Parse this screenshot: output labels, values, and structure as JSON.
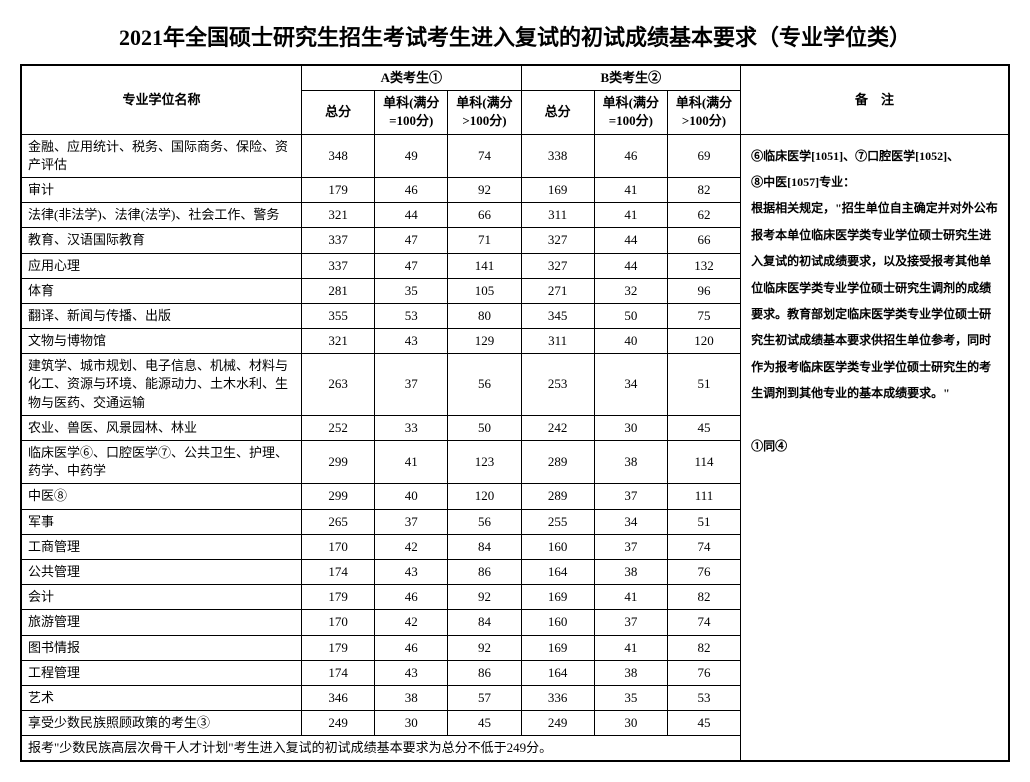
{
  "title": "2021年全国硕士研究生招生考试考生进入复试的初试成绩基本要求（专业学位类）",
  "headers": {
    "name": "专业学位名称",
    "groupA": "A类考生①",
    "groupB": "B类考生②",
    "remark": "备　注",
    "total": "总分",
    "single100": "单科(满分=100分)",
    "singleGt100": "单科(满分>100分)"
  },
  "rows": [
    {
      "name": "金融、应用统计、税务、国际商务、保险、资产评估",
      "a": [
        348,
        49,
        74
      ],
      "b": [
        338,
        46,
        69
      ]
    },
    {
      "name": "审计",
      "a": [
        179,
        46,
        92
      ],
      "b": [
        169,
        41,
        82
      ]
    },
    {
      "name": "法律(非法学)、法律(法学)、社会工作、警务",
      "a": [
        321,
        44,
        66
      ],
      "b": [
        311,
        41,
        62
      ]
    },
    {
      "name": "教育、汉语国际教育",
      "a": [
        337,
        47,
        71
      ],
      "b": [
        327,
        44,
        66
      ]
    },
    {
      "name": "应用心理",
      "a": [
        337,
        47,
        141
      ],
      "b": [
        327,
        44,
        132
      ]
    },
    {
      "name": "体育",
      "a": [
        281,
        35,
        105
      ],
      "b": [
        271,
        32,
        96
      ]
    },
    {
      "name": "翻译、新闻与传播、出版",
      "a": [
        355,
        53,
        80
      ],
      "b": [
        345,
        50,
        75
      ]
    },
    {
      "name": "文物与博物馆",
      "a": [
        321,
        43,
        129
      ],
      "b": [
        311,
        40,
        120
      ]
    },
    {
      "name": "建筑学、城市规划、电子信息、机械、材料与化工、资源与环境、能源动力、土木水利、生物与医药、交通运输",
      "a": [
        263,
        37,
        56
      ],
      "b": [
        253,
        34,
        51
      ]
    },
    {
      "name": "农业、兽医、风景园林、林业",
      "a": [
        252,
        33,
        50
      ],
      "b": [
        242,
        30,
        45
      ]
    },
    {
      "name": "临床医学⑥、口腔医学⑦、公共卫生、护理、药学、中药学",
      "a": [
        299,
        41,
        123
      ],
      "b": [
        289,
        38,
        114
      ]
    },
    {
      "name": "中医⑧",
      "a": [
        299,
        40,
        120
      ],
      "b": [
        289,
        37,
        111
      ]
    },
    {
      "name": "军事",
      "a": [
        265,
        37,
        56
      ],
      "b": [
        255,
        34,
        51
      ]
    },
    {
      "name": "工商管理",
      "a": [
        170,
        42,
        84
      ],
      "b": [
        160,
        37,
        74
      ]
    },
    {
      "name": "公共管理",
      "a": [
        174,
        43,
        86
      ],
      "b": [
        164,
        38,
        76
      ]
    },
    {
      "name": "会计",
      "a": [
        179,
        46,
        92
      ],
      "b": [
        169,
        41,
        82
      ]
    },
    {
      "name": "旅游管理",
      "a": [
        170,
        42,
        84
      ],
      "b": [
        160,
        37,
        74
      ]
    },
    {
      "name": "图书情报",
      "a": [
        179,
        46,
        92
      ],
      "b": [
        169,
        41,
        82
      ]
    },
    {
      "name": "工程管理",
      "a": [
        174,
        43,
        86
      ],
      "b": [
        164,
        38,
        76
      ]
    },
    {
      "name": "艺术",
      "a": [
        346,
        38,
        57
      ],
      "b": [
        336,
        35,
        53
      ]
    },
    {
      "name": "享受少数民族照顾政策的考生③",
      "a": [
        249,
        30,
        45
      ],
      "b": [
        249,
        30,
        45
      ]
    }
  ],
  "footnote": "报考\"少数民族高层次骨干人才计划\"考生进入复试的初试成绩基本要求为总分不低于249分。",
  "remarkText": "⑥临床医学[1051]、⑦口腔医学[1052]、\n⑧中医[1057]专业：\n根据相关规定，\"招生单位自主确定并对外公布报考本单位临床医学类专业学位硕士研究生进入复试的初试成绩要求，以及接受报考其他单位临床医学类专业学位硕士研究生调剂的成绩要求。教育部划定临床医学类专业学位硕士研究生初试成绩基本要求供招生单位参考，同时作为报考临床医学类专业学位硕士研究生的考生调剂到其他专业的基本成绩要求。\"\n\n①同④"
}
